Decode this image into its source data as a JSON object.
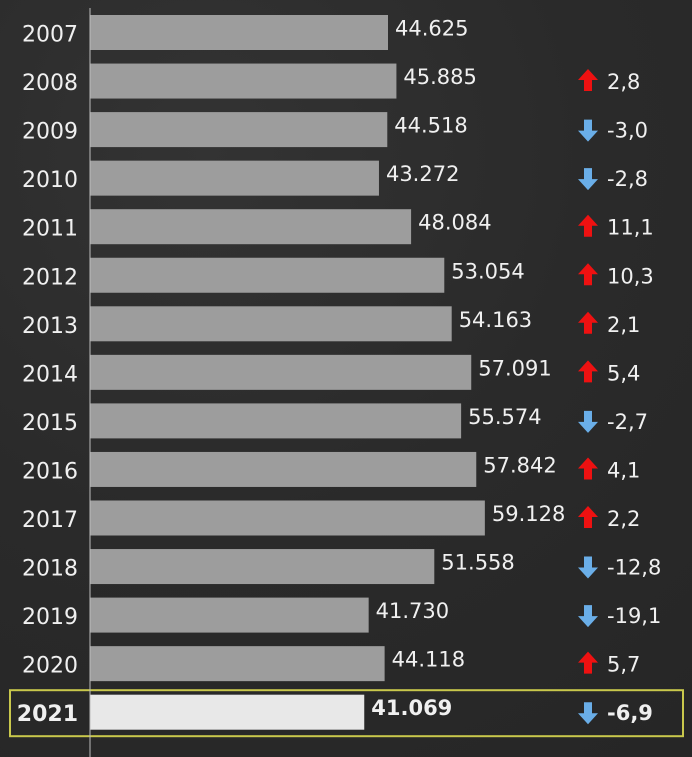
{
  "chart_data": {
    "type": "bar",
    "orientation": "horizontal",
    "categories": [
      "2007",
      "2008",
      "2009",
      "2010",
      "2011",
      "2012",
      "2013",
      "2014",
      "2015",
      "2016",
      "2017",
      "2018",
      "2019",
      "2020",
      "2021"
    ],
    "values": [
      44625,
      45885,
      44518,
      43272,
      48084,
      53054,
      54163,
      57091,
      55574,
      57842,
      59128,
      51558,
      41730,
      44118,
      41069
    ],
    "value_labels": [
      "44.625",
      "45.885",
      "44.518",
      "43.272",
      "48.084",
      "53.054",
      "54.163",
      "57.091",
      "55.574",
      "57.842",
      "59.128",
      "51.558",
      "41.730",
      "44.118",
      "41.069"
    ],
    "change_labels": [
      "",
      "2,8",
      "-3,0",
      "-2,8",
      "11,1",
      "10,3",
      "2,1",
      "5,4",
      "-2,7",
      "4,1",
      "2,2",
      "-12,8",
      "-19,1",
      "5,7",
      "-6,9"
    ],
    "change_direction": [
      "",
      "up",
      "down",
      "down",
      "up",
      "up",
      "up",
      "up",
      "down",
      "up",
      "up",
      "down",
      "down",
      "up",
      "down"
    ],
    "highlighted_category": "2021",
    "xlim": [
      0,
      60000
    ],
    "grid": false,
    "colors": {
      "bar": "#9d9d9d",
      "highlight_bar": "#e8e8e8",
      "up": "#ee1111",
      "down": "#6aaee8",
      "highlight_box": "#c9c84c",
      "background": "#2b2b2b"
    }
  }
}
